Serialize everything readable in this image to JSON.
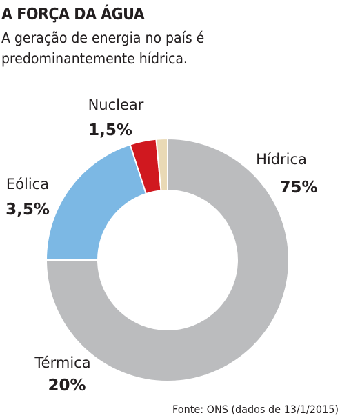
{
  "title": "A FORÇA DA ÁGUA",
  "subtitle_lines": [
    "A geração de energia no país é",
    "predominantemente hídrica."
  ],
  "source": "Fonte: ONS (dados de 13/1/2015)",
  "colors": {
    "hidrica": "#bbbcbe",
    "termica": "#7cb8e4",
    "eolica": "#d0181f",
    "nuclear": "#e9d9b5",
    "separator": "#ffffff"
  },
  "chart_data": {
    "type": "pie",
    "style": "donut",
    "title": "",
    "categories": [
      "Hídrica",
      "Térmica",
      "Eólica",
      "Nuclear"
    ],
    "labels": [
      "75%",
      "20%",
      "3,5%",
      "1,5%"
    ],
    "values": [
      75,
      20,
      3.5,
      1.5
    ],
    "start": "top, clockwise from Hídrica"
  }
}
